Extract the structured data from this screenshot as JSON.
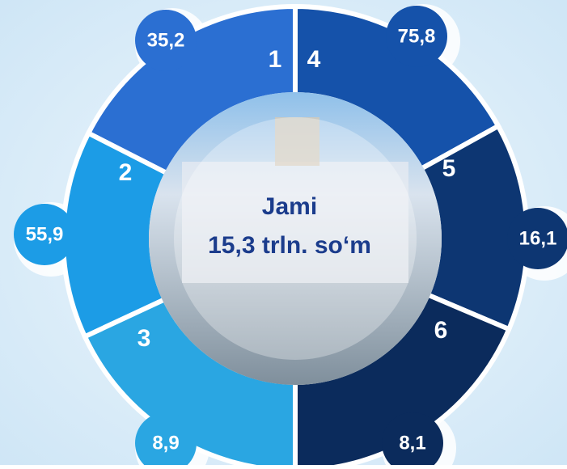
{
  "center": {
    "line1": "Jami",
    "line2": "15,3 trln. so‘m"
  },
  "segments": [
    {
      "number": "1",
      "value": "35,2",
      "color": "#2b6fd2"
    },
    {
      "number": "2",
      "value": "55,9",
      "color": "#1c9ce6"
    },
    {
      "number": "3",
      "value": "8,9",
      "color": "#2aa6e2"
    },
    {
      "number": "4",
      "value": "75,8",
      "color": "#1552aa"
    },
    {
      "number": "5",
      "value": "16,1",
      "color": "#0d3672"
    },
    {
      "number": "6",
      "value": "8,1",
      "color": "#0b2b5c"
    }
  ]
}
